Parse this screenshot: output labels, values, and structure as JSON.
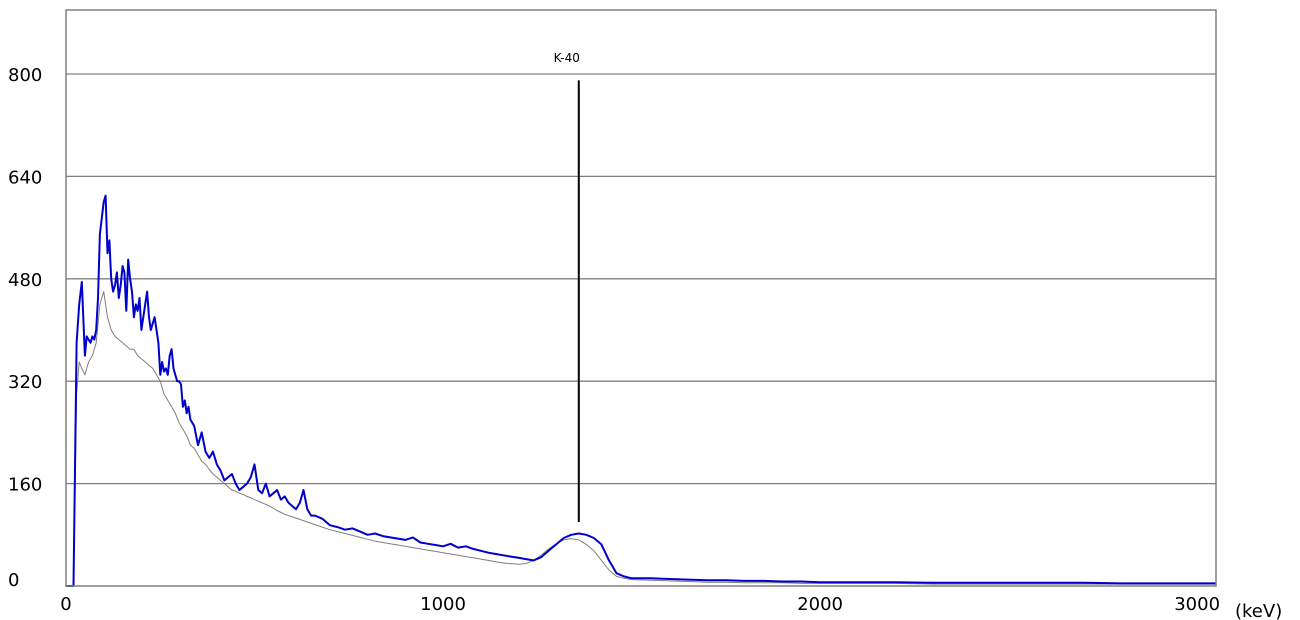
{
  "chart_data": {
    "type": "line",
    "title": "",
    "xlabel": "",
    "ylabel": "",
    "x_unit": "(keV)",
    "xlim": [
      0,
      3050
    ],
    "ylim": [
      0,
      900
    ],
    "x_ticks": [
      0,
      1000,
      2000,
      3000
    ],
    "y_ticks": [
      0,
      160,
      320,
      480,
      640,
      800
    ],
    "grid": "horizontal",
    "legend": "none",
    "colors": {
      "series_1": "#0000cc",
      "series_2": "#7f7f7f",
      "annotation": "#000000",
      "grid": "#808080"
    },
    "series": [
      {
        "x": [
          0,
          20,
          28,
          35,
          42,
          50,
          55,
          60,
          65,
          70,
          75,
          80,
          85,
          90,
          100,
          105,
          110,
          115,
          120,
          125,
          130,
          135,
          140,
          145,
          150,
          155,
          160,
          165,
          170,
          175,
          180,
          185,
          190,
          195,
          200,
          205,
          210,
          215,
          220,
          225,
          230,
          235,
          240,
          245,
          250,
          255,
          260,
          265,
          270,
          275,
          280,
          285,
          290,
          295,
          300,
          305,
          310,
          315,
          320,
          325,
          330,
          340,
          350,
          360,
          370,
          380,
          390,
          400,
          410,
          420,
          430,
          440,
          450,
          460,
          470,
          480,
          490,
          500,
          510,
          520,
          530,
          540,
          550,
          560,
          570,
          580,
          590,
          600,
          610,
          620,
          630,
          640,
          650,
          660,
          680,
          700,
          720,
          740,
          760,
          780,
          800,
          820,
          840,
          860,
          880,
          900,
          920,
          940,
          960,
          980,
          1000,
          1020,
          1040,
          1060,
          1080,
          1100,
          1120,
          1140,
          1160,
          1180,
          1200,
          1220,
          1240,
          1260,
          1280,
          1300,
          1320,
          1340,
          1360,
          1380,
          1400,
          1420,
          1440,
          1460,
          1480,
          1500,
          1550,
          1600,
          1650,
          1700,
          1750,
          1800,
          1850,
          1900,
          1950,
          2000,
          2100,
          2200,
          2300,
          2400,
          2500,
          2600,
          2700,
          2800,
          2900,
          3000,
          3050
        ],
        "y": [
          0,
          0,
          380,
          440,
          475,
          360,
          390,
          385,
          380,
          390,
          385,
          400,
          450,
          550,
          600,
          610,
          520,
          540,
          480,
          460,
          470,
          490,
          450,
          470,
          500,
          490,
          430,
          510,
          480,
          460,
          420,
          440,
          430,
          450,
          400,
          420,
          440,
          460,
          420,
          400,
          410,
          420,
          400,
          380,
          330,
          350,
          335,
          340,
          330,
          360,
          370,
          340,
          330,
          320,
          320,
          315,
          280,
          290,
          270,
          280,
          260,
          250,
          220,
          240,
          210,
          200,
          210,
          190,
          180,
          165,
          170,
          175,
          160,
          150,
          155,
          160,
          170,
          190,
          150,
          145,
          160,
          140,
          145,
          150,
          135,
          140,
          130,
          125,
          120,
          130,
          150,
          120,
          110,
          110,
          105,
          95,
          92,
          88,
          90,
          85,
          80,
          82,
          78,
          76,
          74,
          72,
          76,
          68,
          66,
          64,
          62,
          66,
          60,
          62,
          58,
          55,
          52,
          50,
          48,
          46,
          44,
          42,
          40,
          45,
          55,
          65,
          75,
          80,
          82,
          80,
          75,
          65,
          40,
          20,
          15,
          12,
          12,
          11,
          10,
          9,
          9,
          8,
          8,
          7,
          7,
          6,
          6,
          6,
          5,
          5,
          5,
          5,
          5,
          4,
          4,
          4,
          4
        ]
      },
      {
        "x": [
          0,
          20,
          28,
          35,
          42,
          50,
          55,
          60,
          70,
          80,
          90,
          100,
          110,
          120,
          130,
          140,
          150,
          160,
          170,
          180,
          190,
          200,
          210,
          220,
          230,
          240,
          250,
          260,
          270,
          280,
          290,
          300,
          310,
          320,
          330,
          340,
          350,
          360,
          370,
          380,
          390,
          400,
          410,
          420,
          430,
          440,
          450,
          460,
          470,
          480,
          490,
          500,
          520,
          540,
          560,
          580,
          600,
          620,
          640,
          660,
          680,
          700,
          720,
          740,
          760,
          780,
          800,
          820,
          840,
          860,
          880,
          900,
          920,
          940,
          960,
          980,
          1000,
          1020,
          1040,
          1060,
          1080,
          1100,
          1120,
          1140,
          1160,
          1180,
          1200,
          1220,
          1240,
          1260,
          1280,
          1300,
          1320,
          1340,
          1360,
          1380,
          1400,
          1420,
          1440,
          1460,
          1480,
          1500,
          1550,
          1600,
          1650,
          1700,
          1750,
          1800,
          1850,
          1900,
          1950,
          2000,
          2100,
          2200,
          2300,
          2400,
          2500,
          2600,
          2700,
          2800,
          2900,
          3000,
          3050
        ],
        "y": [
          0,
          0,
          300,
          350,
          340,
          330,
          340,
          350,
          360,
          380,
          440,
          460,
          420,
          400,
          390,
          385,
          380,
          375,
          370,
          370,
          360,
          355,
          350,
          345,
          340,
          330,
          320,
          300,
          290,
          280,
          270,
          255,
          245,
          235,
          220,
          215,
          205,
          195,
          190,
          182,
          175,
          170,
          165,
          160,
          155,
          150,
          148,
          145,
          143,
          140,
          138,
          135,
          130,
          125,
          118,
          112,
          108,
          104,
          100,
          96,
          92,
          88,
          85,
          82,
          79,
          76,
          73,
          70,
          68,
          66,
          64,
          62,
          60,
          58,
          56,
          54,
          52,
          50,
          48,
          46,
          44,
          42,
          40,
          38,
          36,
          35,
          34,
          35,
          40,
          48,
          58,
          66,
          72,
          74,
          72,
          65,
          55,
          40,
          25,
          15,
          12,
          10,
          9,
          8,
          7,
          6,
          6,
          5,
          5,
          5,
          4,
          4,
          4,
          4,
          3,
          3,
          3,
          3,
          3,
          3,
          3,
          3,
          3
        ]
      }
    ],
    "annotations": [
      {
        "label": "K-40",
        "x": 1360,
        "y_top": 790,
        "y_bottom": 100
      }
    ]
  }
}
